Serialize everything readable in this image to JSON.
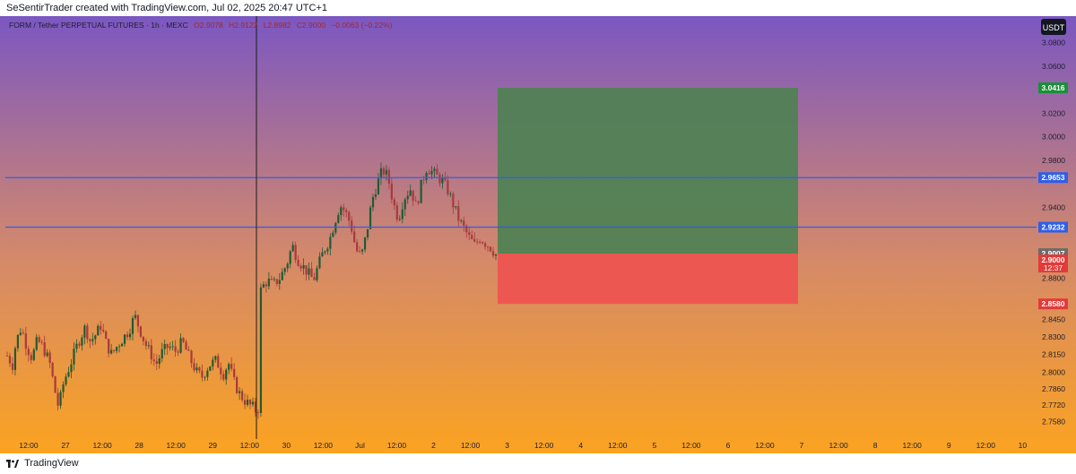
{
  "header": {
    "attribution": "SeSentirTrader created with TradingView.com, Jul 02, 2025 20:47 UTC+1"
  },
  "footer": {
    "brand": "TradingView"
  },
  "symbol_bar": {
    "name": "FORM / Tether PERPETUAL FUTURES · 1h · MEXC",
    "open": "O2.9078",
    "high": "H2.9122",
    "low": "L2.8982",
    "close": "C2.9000",
    "change": "−0.0063 (−0.22%)"
  },
  "colors": {
    "gradient_top": "#7b57c2",
    "gradient_mid": "#d4896a",
    "gradient_bottom": "#fba321",
    "up": "#1f5b35",
    "down": "#a83a3c",
    "profit_zone": "#4e8152",
    "loss_zone": "#ef5350",
    "level_line": "#2f5fe8",
    "label_blue": "#2f5fe8",
    "label_green": "#1b8f3b",
    "label_red": "#e33a3a",
    "label_gray": "#6b6b6b"
  },
  "chart_data": {
    "type": "candlestick",
    "currency": "USDT",
    "ylim": [
      2.752,
      3.11
    ],
    "y_ticks": [
      "3.0800",
      "3.0600",
      "3.0200",
      "3.0000",
      "2.9800",
      "2.9400",
      "2.8800",
      "2.8450",
      "2.8300",
      "2.8150",
      "2.8000",
      "2.7860",
      "2.7720",
      "2.7580"
    ],
    "x_ticks": [
      "12:00",
      "27",
      "12:00",
      "28",
      "12:00",
      "29",
      "12:00",
      "30",
      "12:00",
      "Jul",
      "12:00",
      "2",
      "12:00",
      "3",
      "12:00",
      "4",
      "12:00",
      "5",
      "12:00",
      "6",
      "12:00",
      "7",
      "12:00",
      "8",
      "12:00",
      "9",
      "12:00",
      "10"
    ],
    "price_labels": [
      {
        "value": 3.0416,
        "text": "3.0416",
        "kind": "target"
      },
      {
        "value": 2.9653,
        "text": "2.9653",
        "kind": "level"
      },
      {
        "value": 2.9232,
        "text": "2.9232",
        "kind": "level"
      },
      {
        "value": 2.9007,
        "text": "2.9007",
        "kind": "entry"
      },
      {
        "value": 2.9,
        "text": "2.9000",
        "kind": "last",
        "countdown": "12:37"
      },
      {
        "value": 2.858,
        "text": "2.8580",
        "kind": "stop"
      }
    ],
    "horizontal_levels": [
      2.9653,
      2.9232
    ],
    "position": {
      "side": "long",
      "entry": 2.9007,
      "target": 3.0416,
      "stop": 2.858
    },
    "vertical_marker_x": "Jun 29 12:00",
    "price_path": [
      [
        0,
        2.814
      ],
      [
        6,
        2.806
      ],
      [
        10,
        2.826
      ],
      [
        16,
        2.838
      ],
      [
        22,
        2.822
      ],
      [
        28,
        2.812
      ],
      [
        34,
        2.827
      ],
      [
        40,
        2.822
      ],
      [
        48,
        2.808
      ],
      [
        54,
        2.784
      ],
      [
        58,
        2.77
      ],
      [
        64,
        2.792
      ],
      [
        72,
        2.808
      ],
      [
        80,
        2.825
      ],
      [
        88,
        2.838
      ],
      [
        94,
        2.826
      ],
      [
        100,
        2.832
      ],
      [
        106,
        2.84
      ],
      [
        112,
        2.824
      ],
      [
        118,
        2.815
      ],
      [
        124,
        2.822
      ],
      [
        132,
        2.83
      ],
      [
        138,
        2.836
      ],
      [
        144,
        2.848
      ],
      [
        150,
        2.836
      ],
      [
        156,
        2.824
      ],
      [
        162,
        2.816
      ],
      [
        168,
        2.806
      ],
      [
        174,
        2.816
      ],
      [
        182,
        2.822
      ],
      [
        190,
        2.818
      ],
      [
        198,
        2.826
      ],
      [
        206,
        2.812
      ],
      [
        214,
        2.8
      ],
      [
        220,
        2.796
      ],
      [
        228,
        2.806
      ],
      [
        236,
        2.81
      ],
      [
        244,
        2.798
      ],
      [
        250,
        2.808
      ],
      [
        256,
        2.792
      ],
      [
        262,
        2.782
      ],
      [
        268,
        2.776
      ],
      [
        274,
        2.772
      ],
      [
        278,
        2.77
      ],
      [
        282,
        2.766
      ],
      [
        286,
        2.774
      ],
      [
        288,
        2.872
      ],
      [
        294,
        2.878
      ],
      [
        300,
        2.874
      ],
      [
        308,
        2.88
      ],
      [
        316,
        2.892
      ],
      [
        322,
        2.908
      ],
      [
        328,
        2.896
      ],
      [
        334,
        2.89
      ],
      [
        340,
        2.884
      ],
      [
        346,
        2.878
      ],
      [
        352,
        2.892
      ],
      [
        358,
        2.904
      ],
      [
        364,
        2.912
      ],
      [
        370,
        2.928
      ],
      [
        376,
        2.942
      ],
      [
        382,
        2.936
      ],
      [
        388,
        2.926
      ],
      [
        394,
        2.904
      ],
      [
        400,
        2.898
      ],
      [
        406,
        2.918
      ],
      [
        412,
        2.946
      ],
      [
        418,
        2.96
      ],
      [
        424,
        2.972
      ],
      [
        430,
        2.966
      ],
      [
        436,
        2.944
      ],
      [
        442,
        2.93
      ],
      [
        448,
        2.948
      ],
      [
        456,
        2.956
      ],
      [
        462,
        2.94
      ],
      [
        468,
        2.96
      ],
      [
        474,
        2.974
      ],
      [
        480,
        2.97
      ],
      [
        486,
        2.966
      ],
      [
        492,
        2.962
      ],
      [
        498,
        2.954
      ],
      [
        504,
        2.942
      ],
      [
        510,
        2.93
      ],
      [
        516,
        2.922
      ],
      [
        522,
        2.914
      ],
      [
        528,
        2.908
      ],
      [
        534,
        2.914
      ],
      [
        540,
        2.91
      ],
      [
        546,
        2.906
      ],
      [
        552,
        2.9
      ]
    ]
  }
}
